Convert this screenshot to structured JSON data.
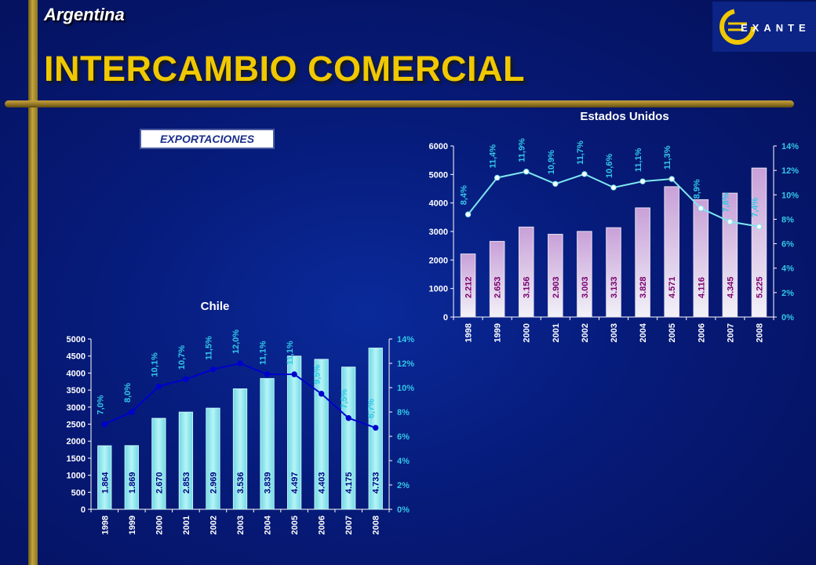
{
  "header": {
    "country": "Argentina",
    "title": "INTERCAMBIO COMERCIAL",
    "badge": "EXPORTACIONES",
    "logo_text": "EXANTE"
  },
  "colors": {
    "us_bar_top": "#c8a0d8",
    "us_bar_bottom": "#f2f2f8",
    "us_line": "#7fe8f0",
    "us_value_label": "#7a006e",
    "chile_bar": "#8fe9f0",
    "chile_line": "#0000cc",
    "chile_value_label": "#000080",
    "axis_text": "#ffffff",
    "pct_text": "#32c8e8"
  },
  "chart_data": [
    {
      "name": "Estados Unidos",
      "type": "bar",
      "title": "Estados Unidos",
      "categories": [
        "1998",
        "1999",
        "2000",
        "2001",
        "2002",
        "2003",
        "2004",
        "2005",
        "2006",
        "2007",
        "2008"
      ],
      "values": [
        2212,
        2653,
        3156,
        2903,
        3003,
        3133,
        3828,
        4571,
        4116,
        4345,
        5225
      ],
      "value_labels": [
        "2.212",
        "2.653",
        "3.156",
        "2.903",
        "3.003",
        "3.133",
        "3.828",
        "4.571",
        "4.116",
        "4.345",
        "5.225"
      ],
      "ylim": [
        0,
        6000
      ],
      "yticks": [
        "0",
        "1000",
        "2000",
        "3000",
        "4000",
        "5000",
        "6000"
      ],
      "secondary": {
        "type": "line",
        "values": [
          8.4,
          11.4,
          11.9,
          10.9,
          11.7,
          10.6,
          11.1,
          11.3,
          8.9,
          7.8,
          7.4
        ],
        "labels": [
          "8,4%",
          "11,4%",
          "11,9%",
          "10,9%",
          "11,7%",
          "10,6%",
          "11,1%",
          "11,3%",
          "8,9%",
          "7,8%",
          "7,4%"
        ],
        "ylim": [
          0,
          14
        ],
        "yticks": [
          "0%",
          "2%",
          "4%",
          "6%",
          "8%",
          "10%",
          "12%",
          "14%"
        ]
      }
    },
    {
      "name": "Chile",
      "type": "bar",
      "title": "Chile",
      "categories": [
        "1998",
        "1999",
        "2000",
        "2001",
        "2002",
        "2003",
        "2004",
        "2005",
        "2006",
        "2007",
        "2008"
      ],
      "values": [
        1864,
        1869,
        2670,
        2853,
        2969,
        3536,
        3839,
        4497,
        4403,
        4175,
        4733
      ],
      "value_labels": [
        "1.864",
        "1.869",
        "2.670",
        "2.853",
        "2.969",
        "3.536",
        "3.839",
        "4.497",
        "4.403",
        "4.175",
        "4.733"
      ],
      "ylim": [
        0,
        5000
      ],
      "yticks": [
        "0",
        "500",
        "1000",
        "1500",
        "2000",
        "2500",
        "3000",
        "3500",
        "4000",
        "4500",
        "5000"
      ],
      "secondary": {
        "type": "line",
        "values": [
          7.0,
          8.0,
          10.1,
          10.7,
          11.5,
          12.0,
          11.1,
          11.1,
          9.5,
          7.5,
          6.7
        ],
        "labels": [
          "7,0%",
          "8,0%",
          "10,1%",
          "10,7%",
          "11,5%",
          "12,0%",
          "11,1%",
          "11,1%",
          "9,5%",
          "7,5%",
          "6,7%"
        ],
        "ylim": [
          0,
          14
        ],
        "yticks": [
          "0%",
          "2%",
          "4%",
          "6%",
          "8%",
          "10%",
          "12%",
          "14%"
        ]
      }
    }
  ]
}
